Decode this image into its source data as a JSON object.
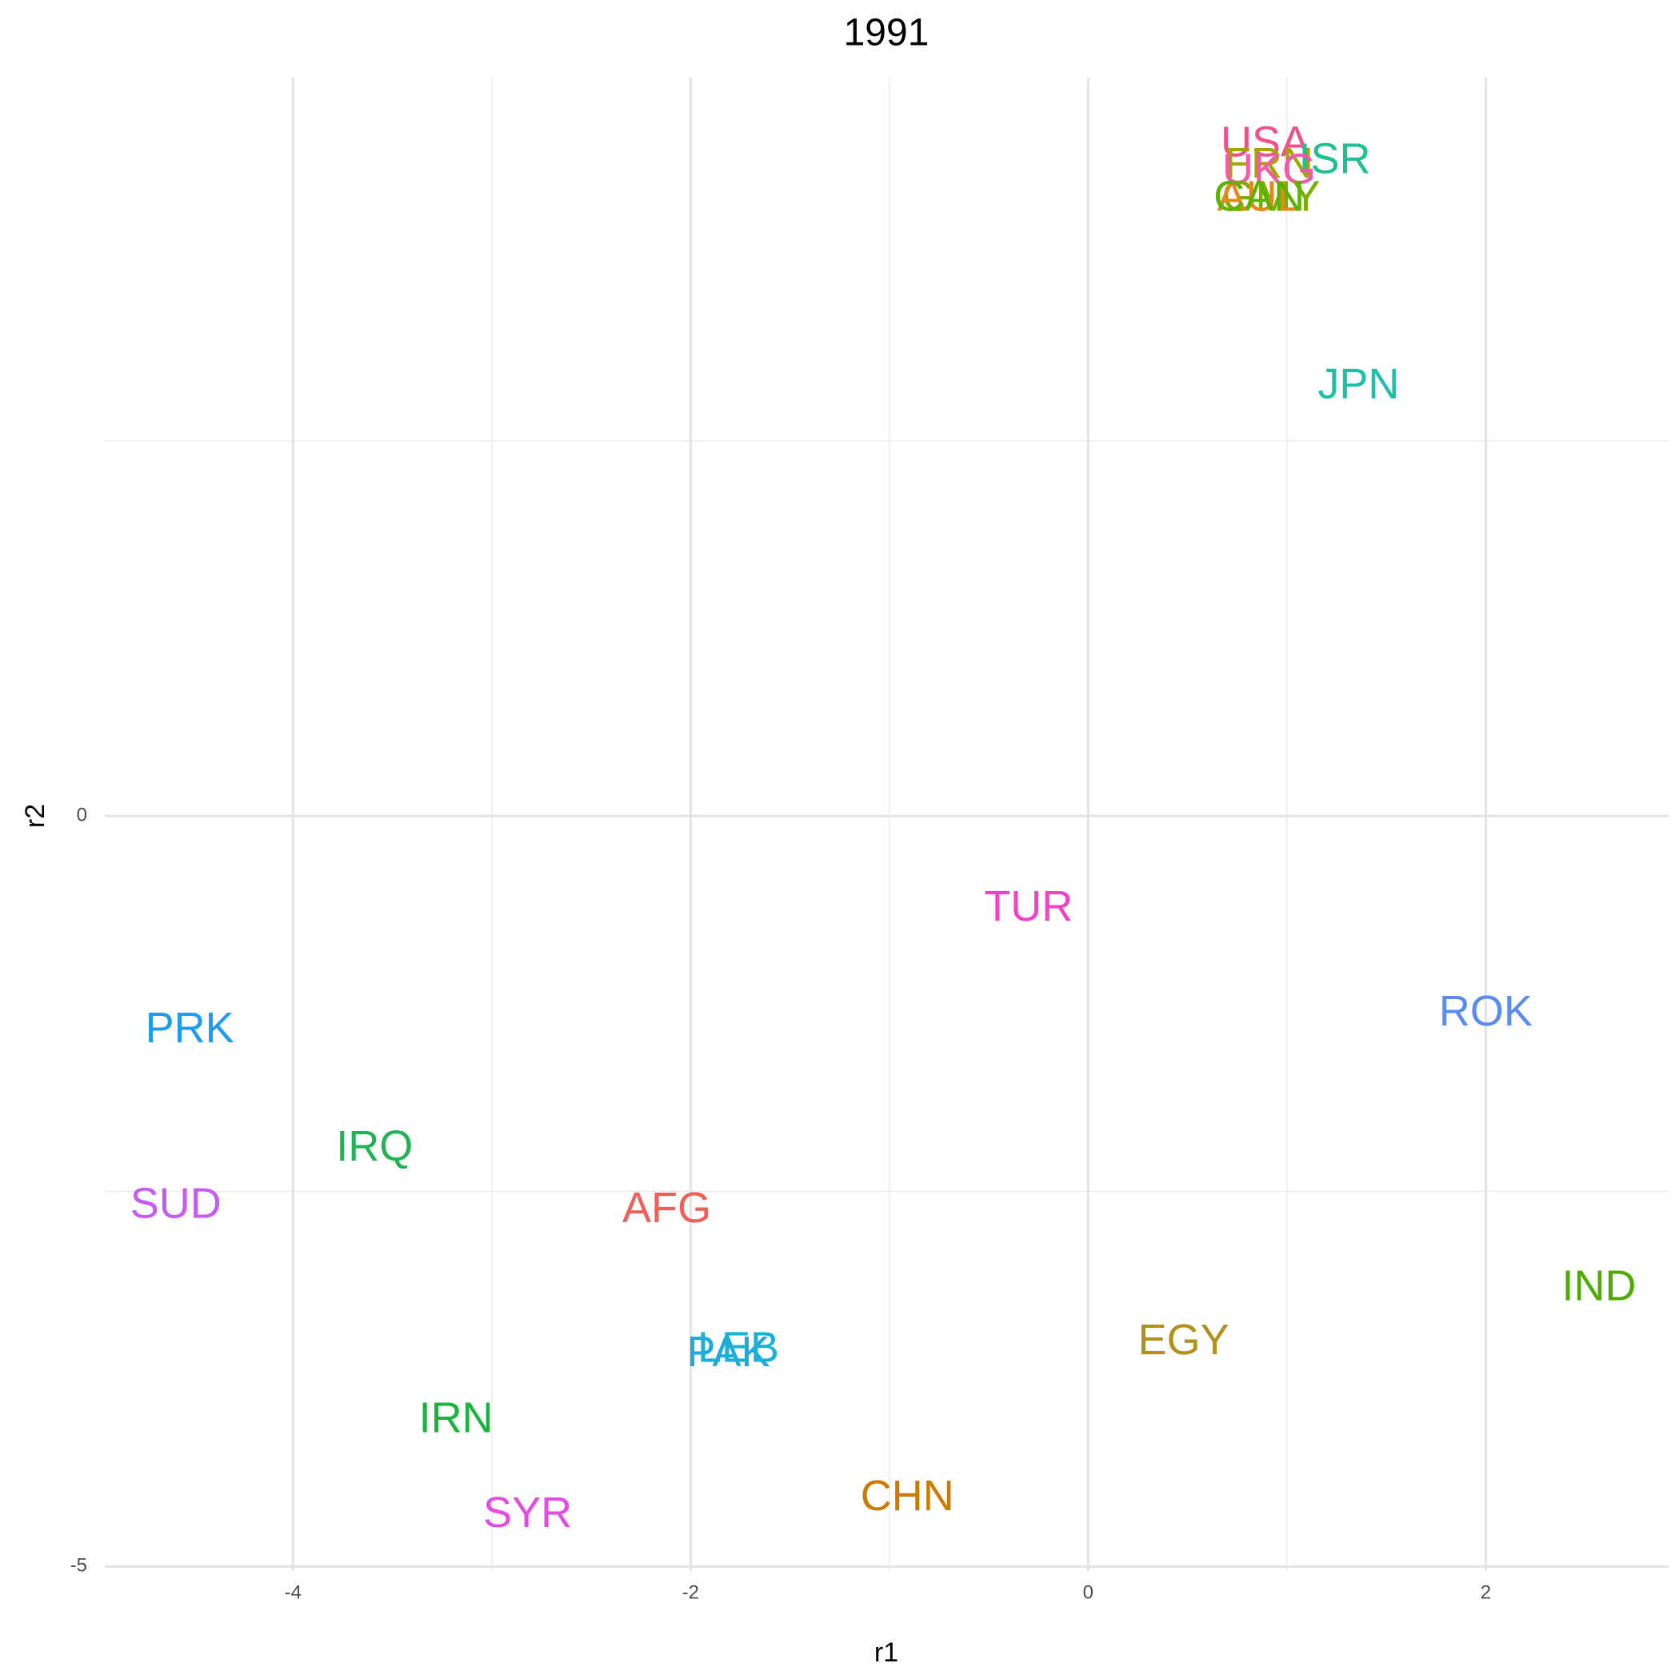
{
  "chart_data": {
    "type": "scatter",
    "title": "1991",
    "x_label": "r1",
    "y_label": "r2",
    "labels": [
      "USA",
      "ISR",
      "FRN",
      "UKG",
      "GMY",
      "AUL",
      "CAN",
      "JPN",
      "TUR",
      "ROK",
      "PRK",
      "IRQ",
      "SUD",
      "AFG",
      "IND",
      "EGY",
      "PAK",
      "LEB",
      "IRN",
      "CHN",
      "SYR"
    ],
    "x": [
      0.89,
      1.24,
      0.91,
      0.91,
      0.92,
      0.86,
      0.86,
      1.36,
      -0.3,
      2.0,
      -4.52,
      -3.59,
      -4.59,
      -2.12,
      2.57,
      0.48,
      -1.81,
      -1.76,
      -3.18,
      -0.91,
      -2.82
    ],
    "values": [
      4.47,
      4.36,
      4.33,
      4.29,
      4.11,
      4.11,
      4.11,
      2.86,
      -0.62,
      -1.32,
      -1.43,
      -2.22,
      -2.6,
      -2.63,
      -3.15,
      -3.51,
      -3.59,
      -3.56,
      -4.03,
      -4.55,
      -4.66
    ],
    "colors": [
      "#f0508c",
      "#1fbf94",
      "#a3a500",
      "#f25aa8",
      "#7cae00",
      "#e7861b",
      "#5bb300",
      "#1fbfa8",
      "#f240c8",
      "#5a8cf0",
      "#1e9cf0",
      "#22b356",
      "#c75af0",
      "#f0605a",
      "#4fab00",
      "#b3901a",
      "#1aa9e0",
      "#1ab2d4",
      "#18b53c",
      "#cc7a00",
      "#e34ce3"
    ],
    "xlim": [
      -4.947,
      2.92
    ],
    "ylim": [
      -5.03,
      4.92
    ],
    "xticks": [
      -4,
      -2,
      0,
      2
    ],
    "yticks": [
      -5,
      0
    ],
    "grid": true
  }
}
